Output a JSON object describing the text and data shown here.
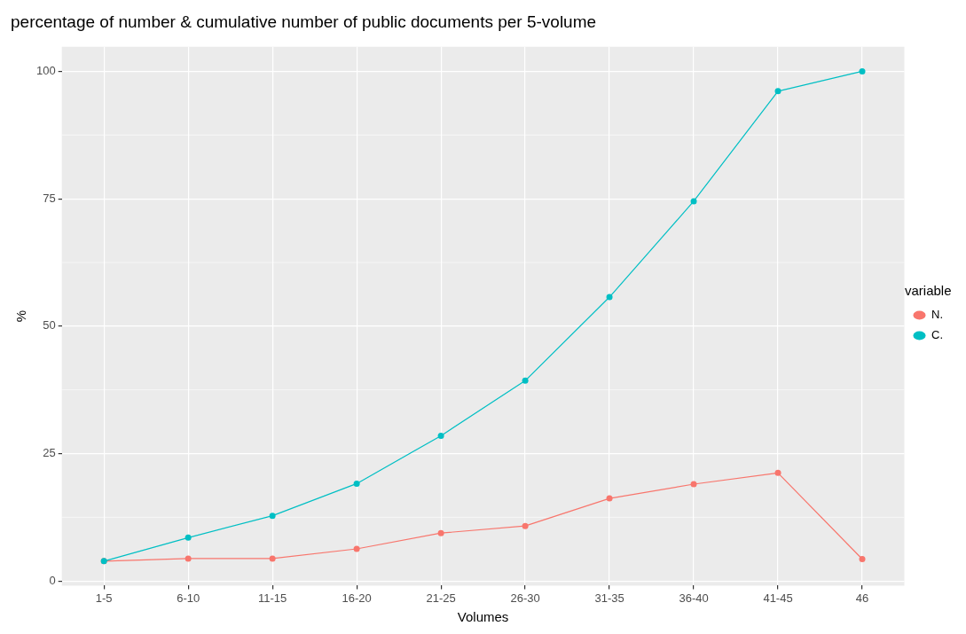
{
  "chart_data": {
    "type": "line",
    "title": "percentage of number & cumulative number of public documents per 5-volume",
    "xlabel": "Volumes",
    "ylabel": "%",
    "legend_title": "variable",
    "categories": [
      "1-5",
      "6-10",
      "11-15",
      "16-20",
      "21-25",
      "26-30",
      "31-35",
      "36-40",
      "41-45",
      "46"
    ],
    "series": [
      {
        "name": "N.",
        "color": "#f8766d",
        "values": [
          3.9,
          4.4,
          4.4,
          6.3,
          9.4,
          10.8,
          16.2,
          19.0,
          21.2,
          4.3
        ]
      },
      {
        "name": "C.",
        "color": "#00bfc4",
        "values": [
          3.9,
          8.5,
          12.8,
          19.1,
          28.5,
          39.3,
          55.7,
          74.5,
          96.1,
          100
        ]
      }
    ],
    "ylim": [
      -0.9,
      104.8
    ],
    "yticks": [
      0,
      25,
      50,
      75,
      100
    ],
    "grid": true,
    "legend": "right",
    "marker": "circle",
    "line_style": "solid"
  }
}
